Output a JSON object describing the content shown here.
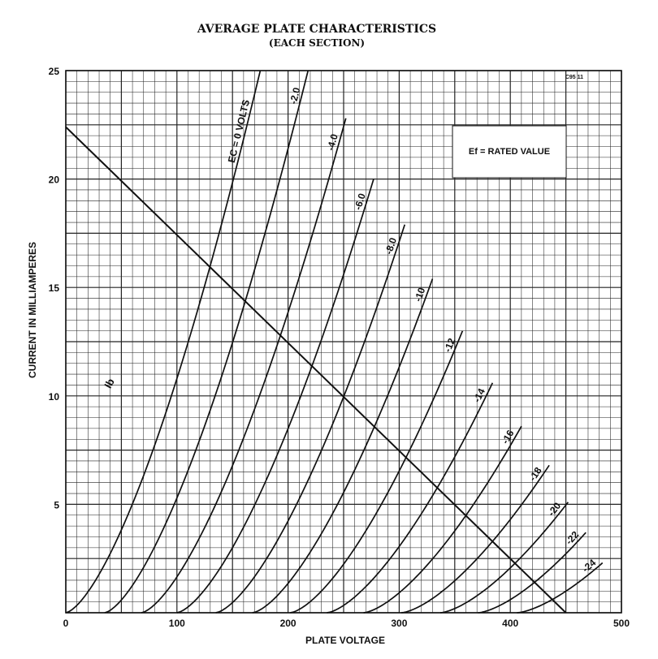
{
  "chart_data": {
    "type": "line",
    "title": "AVERAGE PLATE CHARACTERISTICS",
    "subtitle": "(EACH SECTION)",
    "xlabel": "PLATE VOLTAGE",
    "ylabel": "CURRENT IN MILLIAMPERES",
    "xlim": [
      0,
      500
    ],
    "ylim": [
      0,
      25
    ],
    "x_ticks": [
      "0",
      "100",
      "200",
      "300",
      "400",
      "500"
    ],
    "y_ticks": [
      "5",
      "10",
      "15",
      "20",
      "25"
    ],
    "grid": true,
    "figure_code": "C95 11",
    "annotation": "Ef = RATED VALUE",
    "curves": [
      {
        "label": "EC = 0 VOLTS",
        "start": 0,
        "end": [
          175,
          25
        ]
      },
      {
        "label": "-2.0",
        "start": 35,
        "end": [
          218,
          25
        ]
      },
      {
        "label": "-4.0",
        "start": 68,
        "end": [
          252,
          22.8
        ]
      },
      {
        "label": "-6.0",
        "start": 100,
        "end": [
          277,
          20
        ]
      },
      {
        "label": "-8.0",
        "start": 135,
        "end": [
          305,
          17.9
        ]
      },
      {
        "label": "-10",
        "start": 168,
        "end": [
          330,
          15.4
        ]
      },
      {
        "label": "-12",
        "start": 202,
        "end": [
          357,
          13
        ]
      },
      {
        "label": "-14",
        "start": 235,
        "end": [
          384,
          10.6
        ]
      },
      {
        "label": "-16",
        "start": 268,
        "end": [
          410,
          8.6
        ]
      },
      {
        "label": "-18",
        "start": 302,
        "end": [
          435,
          6.8
        ]
      },
      {
        "label": "-20",
        "start": 337,
        "end": [
          452,
          5.1
        ]
      },
      {
        "label": "-22",
        "start": 371,
        "end": [
          468,
          3.7
        ]
      },
      {
        "label": "-24",
        "start": 406,
        "end": [
          483,
          2.3
        ]
      }
    ],
    "load_line": {
      "label": "Ib",
      "x": [
        0,
        450
      ],
      "y": [
        22.4,
        0
      ]
    }
  }
}
